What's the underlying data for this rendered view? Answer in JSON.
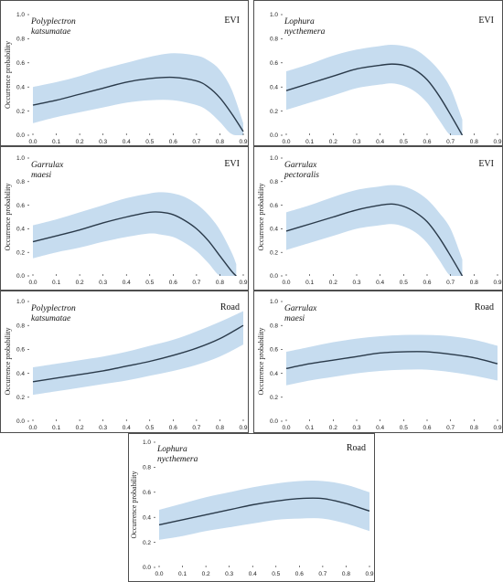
{
  "chart_data": [
    {
      "type": "area",
      "species_line1": "Polyplectron",
      "species_line2": "katsumatae",
      "variable": "EVI",
      "ylabel": "Occurrence probability",
      "xlim": [
        0.0,
        0.9
      ],
      "ylim": [
        0.0,
        1.0
      ],
      "xticks": [
        "0.0",
        "0.1",
        "0.2",
        "0.3",
        "0.4",
        "0.5",
        "0.6",
        "0.7",
        "0.8",
        "0.9"
      ],
      "yticks": [
        "0.0",
        "0.2",
        "0.4",
        "0.6",
        "0.8",
        "1.0"
      ],
      "x": [
        0.0,
        0.1,
        0.2,
        0.3,
        0.4,
        0.5,
        0.6,
        0.7,
        0.75,
        0.8,
        0.85,
        0.9
      ],
      "mean": [
        0.25,
        0.29,
        0.34,
        0.39,
        0.44,
        0.47,
        0.48,
        0.45,
        0.4,
        0.31,
        0.18,
        0.03
      ],
      "lower": [
        0.1,
        0.15,
        0.19,
        0.23,
        0.27,
        0.29,
        0.29,
        0.25,
        0.2,
        0.11,
        0.01,
        0.0
      ],
      "upper": [
        0.4,
        0.44,
        0.49,
        0.55,
        0.6,
        0.65,
        0.68,
        0.66,
        0.62,
        0.54,
        0.38,
        0.1
      ]
    },
    {
      "type": "area",
      "species_line1": "Lophura",
      "species_line2": "nycthemera",
      "variable": "EVI",
      "ylabel": "",
      "xlim": [
        0.0,
        0.9
      ],
      "ylim": [
        0.0,
        1.0
      ],
      "xticks": [
        "0.0",
        "0.1",
        "0.2",
        "0.3",
        "0.4",
        "0.5",
        "0.6",
        "0.7",
        "0.8",
        "0.9"
      ],
      "yticks": [
        "0.0",
        "0.2",
        "0.4",
        "0.6",
        "0.8",
        "1.0"
      ],
      "x": [
        0.0,
        0.1,
        0.2,
        0.3,
        0.4,
        0.45,
        0.5,
        0.55,
        0.6,
        0.65,
        0.7,
        0.75
      ],
      "mean": [
        0.37,
        0.43,
        0.49,
        0.55,
        0.58,
        0.59,
        0.58,
        0.54,
        0.46,
        0.33,
        0.17,
        0.0
      ],
      "lower": [
        0.21,
        0.27,
        0.33,
        0.39,
        0.42,
        0.43,
        0.41,
        0.36,
        0.27,
        0.13,
        0.0,
        0.0
      ],
      "upper": [
        0.53,
        0.59,
        0.66,
        0.71,
        0.74,
        0.75,
        0.74,
        0.71,
        0.64,
        0.54,
        0.39,
        0.13
      ]
    },
    {
      "type": "area",
      "species_line1": "Garrulax",
      "species_line2": "maesi",
      "variable": "EVI",
      "ylabel": "Occurrence probability",
      "xlim": [
        0.0,
        0.9
      ],
      "ylim": [
        0.0,
        1.0
      ],
      "xticks": [
        "0.0",
        "0.1",
        "0.2",
        "0.3",
        "0.4",
        "0.5",
        "0.6",
        "0.7",
        "0.8",
        "0.9"
      ],
      "yticks": [
        "0.0",
        "0.2",
        "0.4",
        "0.6",
        "0.8",
        "1.0"
      ],
      "x": [
        0.0,
        0.1,
        0.2,
        0.3,
        0.4,
        0.5,
        0.55,
        0.6,
        0.65,
        0.7,
        0.75,
        0.8,
        0.85,
        0.87
      ],
      "mean": [
        0.29,
        0.34,
        0.39,
        0.45,
        0.5,
        0.54,
        0.54,
        0.52,
        0.47,
        0.4,
        0.3,
        0.17,
        0.04,
        0.0
      ],
      "lower": [
        0.15,
        0.2,
        0.24,
        0.29,
        0.33,
        0.36,
        0.35,
        0.33,
        0.28,
        0.21,
        0.11,
        0.0,
        0.0,
        0.0
      ],
      "upper": [
        0.43,
        0.48,
        0.54,
        0.6,
        0.66,
        0.7,
        0.71,
        0.7,
        0.67,
        0.61,
        0.52,
        0.39,
        0.2,
        0.1
      ]
    },
    {
      "type": "area",
      "species_line1": "Garrulax",
      "species_line2": "pectoralis",
      "variable": "EVI",
      "ylabel": "Occurrence probability",
      "xlim": [
        0.0,
        0.9
      ],
      "ylim": [
        0.0,
        1.0
      ],
      "xticks": [
        "0.0",
        "0.1",
        "0.2",
        "0.3",
        "0.4",
        "0.5",
        "0.6",
        "0.7",
        "0.8",
        "0.9"
      ],
      "yticks": [
        "0.0",
        "0.2",
        "0.4",
        "0.6",
        "0.8",
        "1.0"
      ],
      "x": [
        0.0,
        0.1,
        0.2,
        0.3,
        0.4,
        0.45,
        0.5,
        0.55,
        0.6,
        0.65,
        0.7,
        0.75
      ],
      "mean": [
        0.38,
        0.44,
        0.5,
        0.56,
        0.6,
        0.61,
        0.59,
        0.54,
        0.46,
        0.33,
        0.17,
        0.0
      ],
      "lower": [
        0.22,
        0.28,
        0.34,
        0.4,
        0.43,
        0.44,
        0.42,
        0.37,
        0.28,
        0.14,
        0.0,
        0.0
      ],
      "upper": [
        0.54,
        0.6,
        0.67,
        0.73,
        0.76,
        0.77,
        0.76,
        0.72,
        0.65,
        0.54,
        0.4,
        0.14
      ]
    },
    {
      "type": "area",
      "species_line1": "Polyplectron",
      "species_line2": "katsumatae",
      "variable": "Road",
      "ylabel": "Occurrence probability",
      "xlim": [
        0.0,
        0.9
      ],
      "ylim": [
        0.0,
        1.0
      ],
      "xticks": [
        "0.0",
        "0.1",
        "0.2",
        "0.3",
        "0.4",
        "0.5",
        "0.6",
        "0.7",
        "0.8",
        "0.9"
      ],
      "yticks": [
        "0.0",
        "0.2",
        "0.4",
        "0.6",
        "0.8",
        "1.0"
      ],
      "x": [
        0.0,
        0.1,
        0.2,
        0.3,
        0.4,
        0.5,
        0.6,
        0.7,
        0.8,
        0.9
      ],
      "mean": [
        0.33,
        0.36,
        0.39,
        0.42,
        0.46,
        0.5,
        0.55,
        0.61,
        0.69,
        0.8
      ],
      "lower": [
        0.22,
        0.25,
        0.28,
        0.31,
        0.34,
        0.38,
        0.42,
        0.47,
        0.54,
        0.64
      ],
      "upper": [
        0.45,
        0.48,
        0.51,
        0.54,
        0.58,
        0.63,
        0.68,
        0.75,
        0.83,
        0.92
      ]
    },
    {
      "type": "area",
      "species_line1": "Garrulax",
      "species_line2": "maesi",
      "variable": "Road",
      "ylabel": "Occurrence probability",
      "xlim": [
        0.0,
        0.9
      ],
      "ylim": [
        0.0,
        1.0
      ],
      "xticks": [
        "0.0",
        "0.1",
        "0.2",
        "0.3",
        "0.4",
        "0.5",
        "0.6",
        "0.7",
        "0.8",
        "0.9"
      ],
      "yticks": [
        "0.0",
        "0.2",
        "0.4",
        "0.6",
        "0.8",
        "1.0"
      ],
      "x": [
        0.0,
        0.1,
        0.2,
        0.3,
        0.4,
        0.5,
        0.6,
        0.7,
        0.8,
        0.9
      ],
      "mean": [
        0.44,
        0.48,
        0.51,
        0.54,
        0.57,
        0.58,
        0.58,
        0.56,
        0.53,
        0.48
      ],
      "lower": [
        0.3,
        0.34,
        0.37,
        0.4,
        0.42,
        0.43,
        0.43,
        0.41,
        0.38,
        0.34
      ],
      "upper": [
        0.58,
        0.62,
        0.66,
        0.69,
        0.71,
        0.72,
        0.72,
        0.71,
        0.68,
        0.63
      ]
    },
    {
      "type": "area",
      "species_line1": "Lophura",
      "species_line2": "nycthemera",
      "variable": "Road",
      "ylabel": "Occurrence probability",
      "xlim": [
        0.0,
        0.9
      ],
      "ylim": [
        0.0,
        1.0
      ],
      "xticks": [
        "0.0",
        "0.1",
        "0.2",
        "0.3",
        "0.4",
        "0.5",
        "0.6",
        "0.7",
        "0.8",
        "0.9"
      ],
      "yticks": [
        "0.0",
        "0.2",
        "0.4",
        "0.6",
        "0.8",
        "1.0"
      ],
      "x": [
        0.0,
        0.1,
        0.2,
        0.3,
        0.4,
        0.5,
        0.6,
        0.7,
        0.8,
        0.9
      ],
      "mean": [
        0.34,
        0.38,
        0.42,
        0.46,
        0.5,
        0.53,
        0.55,
        0.55,
        0.51,
        0.45
      ],
      "lower": [
        0.22,
        0.25,
        0.29,
        0.32,
        0.35,
        0.38,
        0.39,
        0.39,
        0.35,
        0.29
      ],
      "upper": [
        0.46,
        0.51,
        0.56,
        0.6,
        0.64,
        0.67,
        0.69,
        0.69,
        0.66,
        0.6
      ]
    }
  ],
  "colors": {
    "band": "#c6dcef",
    "curve": "#2a3a4a",
    "frame": "#222222"
  }
}
